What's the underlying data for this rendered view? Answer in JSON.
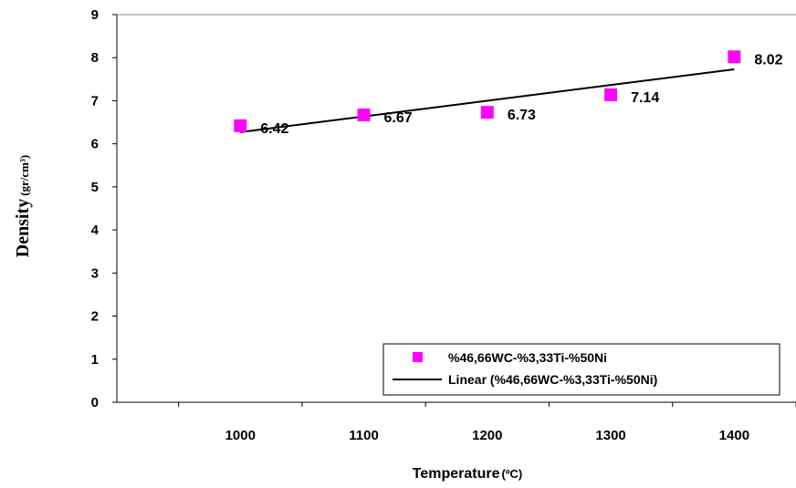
{
  "chart_data": {
    "type": "scatter",
    "title": "",
    "xlabel": "Temperature",
    "xlabel_unit": "(ºC)",
    "ylabel": "Density",
    "ylabel_unit": "(gr/cm³)",
    "xlim": [
      900,
      1450
    ],
    "ylim": [
      0,
      9
    ],
    "xticks": [
      1000,
      1100,
      1200,
      1300,
      1400
    ],
    "yticks": [
      0,
      1,
      2,
      3,
      4,
      5,
      6,
      7,
      8,
      9
    ],
    "grid": false,
    "legend_position": "bottom-right",
    "series": [
      {
        "name": "%46,66WC-%3,33Ti-%50Ni",
        "marker": "square",
        "color": "#ff00ff",
        "x": [
          1000,
          1100,
          1200,
          1300,
          1400
        ],
        "y": [
          6.42,
          6.67,
          6.73,
          7.14,
          8.02
        ],
        "labels": [
          "6.42",
          "6.67",
          "6.73",
          "7.14",
          "8.02"
        ]
      }
    ],
    "trendline": {
      "name": "Linear (%46,66WC-%3,33Ti-%50Ni)",
      "type": "linear",
      "color": "#000000",
      "x": [
        1000,
        1400
      ],
      "y": [
        6.27,
        7.73
      ]
    }
  }
}
